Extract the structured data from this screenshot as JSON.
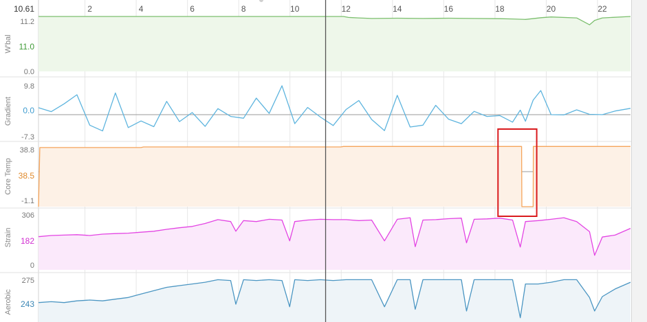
{
  "cursor_value": "10.61",
  "colors": {
    "wbal": "#7cbf6e",
    "wbal_fill": "#eef7ea",
    "gradient": "#5db4de",
    "core_temp": "#f5a45a",
    "core_temp_fill": "#fdf1e6",
    "strain": "#e344e3",
    "strain_fill": "#fbe9fb",
    "aerobic": "#4a95c2",
    "aerobic_fill": "#eef4f8",
    "highlight_box": "#d9191c"
  },
  "chart_data": {
    "type": "line",
    "x_ticks": [
      "2",
      "4",
      "6",
      "8",
      "10",
      "12",
      "14",
      "16",
      "18",
      "20",
      "22"
    ],
    "xlim": [
      0,
      23.1
    ],
    "cursor_x": 11.9,
    "panels": [
      {
        "key": "wbal",
        "name": "W'bal",
        "tick_labels": [
          "11.2",
          "11.0",
          "0.0"
        ],
        "mid_label": "11.0",
        "ylim": [
          0.0,
          11.2
        ],
        "fill": true,
        "x": [
          0,
          0.4,
          3,
          6,
          9,
          11.9,
          12.1,
          12.5,
          13,
          14,
          15,
          16,
          17,
          18,
          18.5,
          19,
          19.6,
          20,
          21,
          21.5,
          21.7,
          22,
          23.1
        ],
        "values": [
          11.2,
          11.2,
          11.2,
          11.2,
          11.2,
          11.2,
          11.0,
          10.9,
          10.8,
          10.85,
          10.8,
          10.85,
          10.8,
          10.75,
          10.7,
          10.6,
          10.95,
          11.1,
          10.9,
          9.5,
          10.4,
          10.9,
          11.2
        ]
      },
      {
        "key": "gradient",
        "name": "Gradient",
        "tick_labels": [
          "9.8",
          "0.0",
          "-7.3"
        ],
        "mid_label": "0.0",
        "ylim": [
          -7.3,
          9.8
        ],
        "fill": false,
        "x": [
          0,
          0.5,
          1,
          1.5,
          2,
          2.5,
          3,
          3.5,
          4,
          4.5,
          5,
          5.5,
          6,
          6.5,
          7,
          7.5,
          8,
          8.5,
          9,
          9.5,
          10,
          10.5,
          11,
          11.5,
          12,
          12.5,
          13,
          13.5,
          14,
          14.5,
          15,
          15.5,
          16,
          16.5,
          17,
          17.5,
          18,
          18.5,
          18.8,
          19.0,
          19.3,
          19.6,
          20,
          20.5,
          21,
          21.5,
          22,
          22.5,
          23.1
        ],
        "values": [
          2.3,
          1.0,
          3.6,
          6.6,
          -3.5,
          -5.4,
          7.2,
          -4.3,
          -2.1,
          -4.0,
          4.4,
          -2.3,
          0.7,
          -3.9,
          2.0,
          -0.6,
          -1.2,
          5.5,
          0.4,
          9.6,
          -3.0,
          2.4,
          -0.8,
          -3.6,
          1.7,
          4.7,
          -1.6,
          -5.3,
          6.4,
          -4.1,
          -3.5,
          3.1,
          -1.5,
          -3.0,
          1.1,
          -0.6,
          -0.3,
          -2.5,
          1.5,
          -2.2,
          4.8,
          8.0,
          0.0,
          -0.1,
          1.6,
          0.1,
          0.0,
          1.2,
          2.1
        ]
      },
      {
        "key": "core_temp",
        "name": "Core Temp",
        "tick_labels": [
          "38.8",
          "38.5",
          "-1.1"
        ],
        "mid_label": "38.5",
        "ylim": [
          -1.1,
          38.8
        ],
        "fill": true,
        "x": [
          0,
          0.05,
          0.1,
          4,
          4.1,
          11.8,
          11.9,
          18.85,
          18.86,
          19.3,
          19.31,
          23.1
        ],
        "values": [
          -1.1,
          37.5,
          37.5,
          37.5,
          37.9,
          37.9,
          38.2,
          38.2,
          -1.1,
          -1.1,
          38.2,
          38.2
        ]
      },
      {
        "key": "strain",
        "name": "Strain",
        "tick_labels": [
          "306",
          "182",
          "0"
        ],
        "mid_label": "182",
        "ylim": [
          0,
          306
        ],
        "fill": true,
        "x": [
          0,
          0.5,
          1,
          1.5,
          2,
          2.5,
          3,
          3.5,
          4,
          4.5,
          5,
          5.5,
          6,
          6.5,
          7,
          7.5,
          7.7,
          8,
          8.5,
          9,
          9.5,
          9.8,
          10,
          10.5,
          11,
          11.5,
          12,
          12.5,
          13,
          13.5,
          14,
          14.5,
          14.7,
          15,
          15.5,
          16,
          16.5,
          16.7,
          17,
          17.5,
          18,
          18.5,
          18.8,
          19,
          19.5,
          20,
          20.5,
          21,
          21.5,
          21.7,
          22,
          22.5,
          23.1
        ],
        "values": [
          172,
          178,
          180,
          182,
          178,
          185,
          188,
          190,
          195,
          200,
          210,
          218,
          225,
          240,
          260,
          250,
          200,
          255,
          250,
          262,
          258,
          150,
          250,
          258,
          262,
          260,
          260,
          255,
          258,
          150,
          262,
          270,
          120,
          258,
          260,
          265,
          268,
          140,
          262,
          264,
          268,
          258,
          118,
          250,
          255,
          262,
          270,
          250,
          198,
          75,
          170,
          180,
          215
        ]
      },
      {
        "key": "aerobic",
        "name": "Aerobic",
        "tick_labels": [
          "275",
          "243"
        ],
        "mid_label": "243",
        "ylim": [
          225,
          281
        ],
        "fill": true,
        "x": [
          0,
          0.5,
          1,
          1.5,
          2,
          2.5,
          3,
          3.5,
          4,
          4.5,
          5,
          5.5,
          6,
          6.5,
          7,
          7.5,
          7.7,
          8,
          8.5,
          9,
          9.5,
          9.8,
          10,
          10.5,
          11,
          11.5,
          12,
          12.5,
          13,
          13.5,
          14,
          14.5,
          14.7,
          15,
          15.5,
          16,
          16.5,
          16.7,
          17,
          17.5,
          18,
          18.5,
          18.8,
          19,
          19.5,
          20,
          20.5,
          21,
          21.5,
          21.7,
          22,
          22.5,
          23.1
        ],
        "values": [
          248,
          249,
          248,
          250,
          251,
          250,
          252,
          254,
          258,
          262,
          266,
          268,
          270,
          272,
          275,
          274,
          246,
          275,
          274,
          275,
          274,
          243,
          275,
          274,
          275,
          274,
          275,
          275,
          275,
          243,
          275,
          275,
          240,
          275,
          275,
          275,
          275,
          238,
          275,
          275,
          275,
          275,
          230,
          270,
          270,
          272,
          275,
          275,
          254,
          238,
          255,
          264,
          272
        ]
      }
    ],
    "highlight": {
      "panel": "core_temp",
      "x_from": 17.93,
      "x_to": 19.44
    }
  }
}
